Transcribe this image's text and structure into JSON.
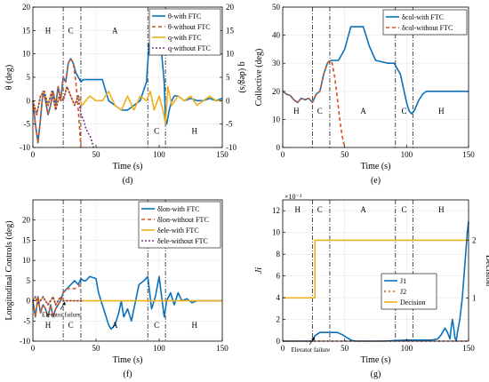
{
  "colors": {
    "blue": "#0a72bd",
    "red": "#d9531e",
    "yellow": "#edb120",
    "purple": "#7e2f8e",
    "grid": "#e6e6e6",
    "black": "#000000"
  },
  "chart_data": [
    {
      "id": "d",
      "type": "line",
      "panel_label": "(d)",
      "xlabel": "Time (s)",
      "ylabel": "θ (deg)",
      "ylabel_right": "q (deg/s)",
      "xlim": [
        0,
        150
      ],
      "ylim": [
        -10,
        20
      ],
      "ylim_right": [
        -10,
        20
      ],
      "xticks": [
        0,
        50,
        100,
        150
      ],
      "yticks": [
        -10,
        -5,
        0,
        5,
        10,
        15,
        20
      ],
      "yticks_right": [
        -10,
        -5,
        0,
        5,
        10,
        15,
        20
      ],
      "phase_lines": [
        24,
        38,
        91,
        105
      ],
      "phase_labels": [
        {
          "text": "H",
          "x": 12,
          "y": 15
        },
        {
          "text": "C",
          "x": 30,
          "y": 15
        },
        {
          "text": "A",
          "x": 65,
          "y": 15
        },
        {
          "text": "C",
          "x": 98,
          "y": -6.5
        },
        {
          "text": "H",
          "x": 128,
          "y": -6.5
        }
      ],
      "legend": [
        "θ-with FTC",
        "θ-without FTC",
        "q-with FTC",
        "q-without FTC"
      ],
      "series": [
        {
          "name": "θ-with FTC",
          "color": "blue",
          "dash": "",
          "x": [
            0,
            2,
            4,
            6,
            8,
            10,
            12,
            14,
            16,
            18,
            20,
            22,
            24,
            26,
            28,
            30,
            32,
            34,
            36,
            38,
            40,
            45,
            50,
            55,
            60,
            65,
            70,
            75,
            80,
            85,
            90,
            92,
            95,
            98,
            100,
            102,
            104,
            105,
            106,
            108,
            110,
            112,
            115,
            120,
            125,
            130,
            135,
            140,
            145,
            150
          ],
          "y": [
            0,
            -5,
            -9,
            -4,
            2,
            0,
            -3,
            -1,
            2,
            -1,
            3,
            0,
            5,
            4,
            8,
            9,
            8,
            6,
            5,
            4,
            4.5,
            4.5,
            4.5,
            4.5,
            0,
            -1,
            -2,
            -2,
            -1,
            0,
            4,
            12,
            14,
            13,
            12,
            10,
            4,
            -4,
            -5,
            -2,
            0,
            1,
            1,
            0,
            0.5,
            0,
            0,
            0.5,
            0,
            0.5
          ]
        },
        {
          "name": "θ-without FTC",
          "color": "red",
          "dash": "4,3",
          "x": [
            0,
            2,
            4,
            6,
            8,
            10,
            12,
            14,
            16,
            18,
            20,
            22,
            24,
            26,
            28,
            30,
            32,
            34,
            36,
            37,
            38
          ],
          "y": [
            0,
            -5,
            -9,
            -4,
            2,
            0,
            -3,
            -1,
            2,
            -1,
            3,
            0,
            5,
            4,
            8,
            9,
            8,
            4,
            -2,
            -6,
            -10
          ]
        },
        {
          "name": "q-with FTC",
          "color": "yellow",
          "dash": "",
          "x": [
            0,
            3,
            6,
            9,
            12,
            15,
            18,
            21,
            24,
            27,
            30,
            33,
            36,
            39,
            42,
            45,
            50,
            55,
            60,
            65,
            70,
            75,
            80,
            85,
            90,
            93,
            96,
            100,
            103,
            105,
            107,
            110,
            115,
            120,
            125,
            130,
            135,
            140,
            145,
            150
          ],
          "y": [
            0,
            -3,
            1,
            2,
            -1,
            2,
            -2,
            1,
            0,
            3,
            1,
            -1,
            1,
            -1,
            0,
            1,
            0,
            0,
            2,
            -1,
            -2,
            1,
            -2,
            1,
            0,
            2,
            -2,
            1,
            -2,
            -5,
            3,
            -1,
            1,
            0,
            1,
            -1,
            0,
            1,
            0,
            0
          ]
        },
        {
          "name": "q-without FTC",
          "color": "purple",
          "dash": "2,2",
          "x": [
            0,
            3,
            6,
            9,
            12,
            15,
            18,
            21,
            24,
            27,
            30,
            33,
            36,
            38,
            40,
            42,
            44,
            46,
            48
          ],
          "y": [
            0,
            -3,
            1,
            2,
            -1,
            2,
            -2,
            1,
            0,
            3,
            1,
            -1,
            1,
            -3,
            -4,
            -6,
            -7,
            -8,
            -10
          ]
        }
      ]
    },
    {
      "id": "e",
      "type": "line",
      "panel_label": "(e)",
      "xlabel": "Time (s)",
      "ylabel": "Collective (deg)",
      "xlim": [
        0,
        150
      ],
      "ylim": [
        0,
        50
      ],
      "xticks": [
        0,
        50,
        100,
        150
      ],
      "yticks": [
        0,
        10,
        20,
        30,
        40,
        50
      ],
      "phase_lines": [
        24,
        38,
        91,
        105
      ],
      "phase_labels": [
        {
          "text": "H",
          "x": 11,
          "y": 13
        },
        {
          "text": "C",
          "x": 30,
          "y": 13
        },
        {
          "text": "A",
          "x": 65,
          "y": 13
        },
        {
          "text": "C",
          "x": 98,
          "y": 13
        },
        {
          "text": "H",
          "x": 128,
          "y": 13
        }
      ],
      "legend": [
        "δcol-with FTC",
        "δcol-without FTC"
      ],
      "series": [
        {
          "name": "δcol-with FTC",
          "color": "blue",
          "dash": "",
          "x": [
            0,
            3,
            6,
            9,
            12,
            15,
            18,
            21,
            24,
            27,
            30,
            33,
            36,
            39,
            45,
            50,
            55,
            60,
            65,
            70,
            75,
            80,
            85,
            90,
            95,
            100,
            102,
            104,
            106,
            108,
            110,
            113,
            116,
            120,
            125,
            130,
            135,
            140,
            145,
            150
          ],
          "y": [
            20,
            19,
            18.5,
            17,
            16,
            17.5,
            17,
            17.5,
            16,
            19,
            20,
            26,
            30,
            31,
            31,
            35,
            43,
            43,
            43,
            36,
            31,
            30.5,
            30,
            30,
            26,
            16,
            13,
            12,
            13,
            15,
            17,
            19,
            20,
            20,
            20,
            20,
            20,
            20,
            20,
            20
          ]
        },
        {
          "name": "δcol-without FTC",
          "color": "red",
          "dash": "4,3",
          "x": [
            0,
            3,
            6,
            9,
            12,
            15,
            18,
            21,
            24,
            27,
            30,
            33,
            36,
            38,
            40,
            42,
            44,
            46,
            48,
            50
          ],
          "y": [
            20,
            19,
            18.5,
            17,
            16,
            17.5,
            17,
            17.5,
            16,
            19,
            20,
            26,
            30,
            31,
            30,
            25,
            18,
            10,
            4,
            0
          ]
        }
      ]
    },
    {
      "id": "f",
      "type": "line",
      "panel_label": "(f)",
      "xlabel": "Time (s)",
      "ylabel": "Longitudinal Controls (deg)",
      "xlim": [
        0,
        150
      ],
      "ylim": [
        -10,
        25
      ],
      "xticks": [
        0,
        50,
        100,
        150
      ],
      "yticks": [
        -10,
        -5,
        0,
        5,
        10,
        15,
        20
      ],
      "phase_lines": [
        24,
        38,
        91,
        105
      ],
      "phase_labels": [
        {
          "text": "H",
          "x": 12,
          "y": -6
        },
        {
          "text": "C",
          "x": 30,
          "y": -6
        },
        {
          "text": "A",
          "x": 65,
          "y": -6
        },
        {
          "text": "C",
          "x": 98,
          "y": -6
        },
        {
          "text": "H",
          "x": 128,
          "y": -6
        }
      ],
      "annotation": {
        "text": "Elevator failure",
        "x": 26,
        "y": 0
      },
      "legend": [
        "δlon-with FTC",
        "δlon-without FTC",
        "δele-with FTC",
        "δele-without FTC"
      ],
      "series": [
        {
          "name": "δlon-with FTC",
          "color": "blue",
          "dash": "",
          "x": [
            0,
            2,
            4,
            6,
            8,
            10,
            12,
            14,
            16,
            18,
            20,
            22,
            24,
            27,
            30,
            33,
            36,
            38,
            40,
            42,
            45,
            50,
            52,
            55,
            58,
            60,
            62,
            65,
            68,
            70,
            72,
            75,
            78,
            80,
            84,
            88,
            91,
            94,
            97,
            100,
            102,
            104,
            106,
            109,
            112,
            115,
            118,
            122,
            126,
            130,
            135,
            140,
            145,
            150
          ],
          "y": [
            0,
            -4,
            1,
            -3,
            -1,
            -2,
            -4,
            -1,
            -4,
            -2,
            -1,
            0,
            2,
            3,
            4,
            5,
            4,
            5.5,
            5,
            5,
            6,
            5.5,
            2,
            -1,
            -4,
            -6,
            -7,
            -6,
            -3,
            0,
            -4,
            -2,
            -5,
            -2,
            4,
            5,
            6,
            -2,
            1,
            6,
            1,
            -4,
            0,
            2,
            -1,
            2,
            0,
            0.5,
            -0.5,
            0,
            0,
            0,
            0,
            0
          ]
        },
        {
          "name": "δlon-without FTC",
          "color": "red",
          "dash": "4,3",
          "x": [
            0,
            2,
            4,
            6,
            8,
            10,
            12,
            14,
            16,
            18,
            20,
            22,
            24,
            27,
            30,
            33,
            36,
            38,
            40
          ],
          "y": [
            0,
            -4,
            1,
            -3,
            -1,
            -2,
            -4,
            -1,
            -4,
            -2,
            -1,
            0,
            2,
            3,
            3,
            3,
            3.5,
            4,
            4
          ]
        },
        {
          "name": "δele-with FTC",
          "color": "yellow",
          "dash": "",
          "x": [
            0,
            2,
            4,
            6,
            8,
            10,
            12,
            14,
            16,
            18,
            20,
            22,
            24,
            26,
            150
          ],
          "y": [
            0,
            1,
            -1,
            0,
            1,
            0,
            -1,
            0,
            1,
            -1,
            0,
            1,
            0,
            0,
            0
          ]
        },
        {
          "name": "δele-without FTC",
          "color": "purple",
          "dash": "2,2",
          "x": [
            0,
            2,
            4,
            6,
            8,
            10,
            12,
            14,
            16,
            18,
            20,
            22,
            24,
            26,
            40
          ],
          "y": [
            0,
            1,
            -1,
            0,
            1,
            0,
            -1,
            0,
            1,
            -1,
            0,
            1,
            0,
            0,
            0
          ]
        }
      ]
    },
    {
      "id": "g",
      "type": "line",
      "panel_label": "(g)",
      "xlabel": "Time (s)",
      "ylabel": "Ji",
      "ylabel_right": "Decision",
      "y_multiplier": "×10⁻³",
      "xlim": [
        0,
        150
      ],
      "ylim": [
        0,
        0.013
      ],
      "ylim_right": [
        0.25,
        2.7
      ],
      "xticks": [
        0,
        50,
        100,
        150
      ],
      "yticks": [
        0,
        0.002,
        0.004,
        0.006,
        0.008,
        0.01,
        0.012
      ],
      "ytick_labels": [
        "0",
        "2",
        "4",
        "6",
        "8",
        "10",
        "12"
      ],
      "yticks_right": [
        1,
        2
      ],
      "phase_lines": [
        24,
        38,
        91,
        105
      ],
      "phase_labels": [
        {
          "text": "H",
          "x": 12,
          "y": 0.0121
        },
        {
          "text": "C",
          "x": 30,
          "y": 0.0121
        },
        {
          "text": "A",
          "x": 65,
          "y": 0.0121
        },
        {
          "text": "C",
          "x": 98,
          "y": 0.0121
        },
        {
          "text": "H",
          "x": 128,
          "y": 0.0121
        }
      ],
      "annotation": {
        "text": "Elevator failure",
        "x": 26,
        "y": 0.0005
      },
      "legend": [
        "J1",
        "J2",
        "Decision"
      ],
      "series": [
        {
          "name": "J1",
          "color": "blue",
          "dash": "",
          "x": [
            0,
            24,
            26,
            30,
            34,
            38,
            40,
            44,
            48,
            52,
            56,
            60,
            70,
            80,
            90,
            100,
            110,
            120,
            125,
            128,
            131,
            133,
            135,
            136,
            137,
            138,
            139,
            140,
            141,
            143,
            145,
            147,
            149,
            150
          ],
          "y": [
            0,
            0,
            0.0005,
            0.0008,
            0.0008,
            0.0008,
            0.0008,
            0.0008,
            0.0006,
            0.0003,
            5e-05,
            0,
            0,
            0,
            5e-05,
            0.0001,
            0.0001,
            0.0001,
            0.0002,
            0.0006,
            0.0012,
            0.0008,
            0.0002,
            0.0013,
            0.002,
            0.0012,
            0.0003,
            0,
            0.0008,
            0.002,
            0.004,
            0.007,
            0.01,
            0.011
          ]
        },
        {
          "name": "J2",
          "color": "red",
          "dash": "2,3",
          "x": [
            0,
            150
          ],
          "y": [
            0,
            0
          ]
        },
        {
          "name": "Decision",
          "color": "yellow",
          "dash": "",
          "axis": "right",
          "x": [
            0,
            26,
            26,
            150
          ],
          "y": [
            1,
            1,
            2,
            2
          ]
        }
      ]
    }
  ]
}
